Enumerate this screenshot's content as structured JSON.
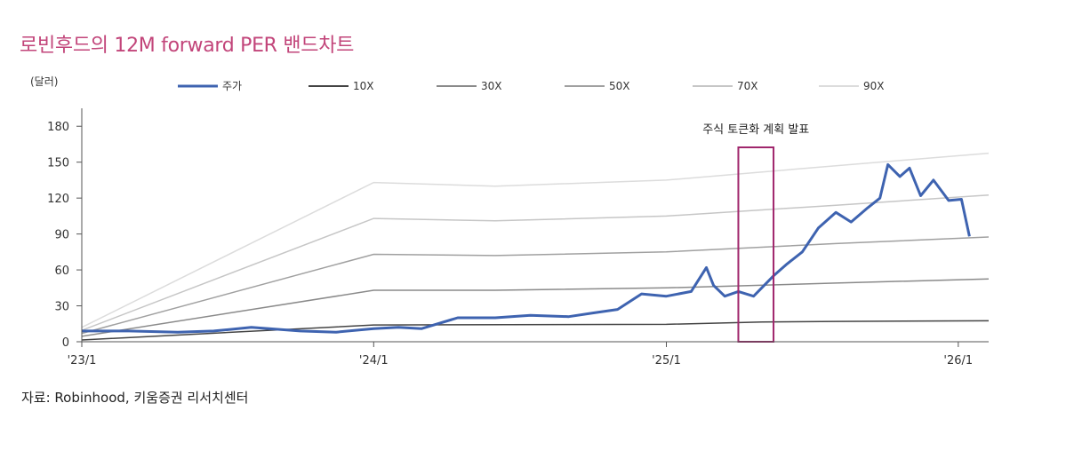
{
  "chart_data": {
    "type": "line",
    "title": "로빈후드의 12M forward PER 밴드차트",
    "unit_label": "(달러)",
    "source": "자료: Robinhood, 키움증권 리서치센터",
    "annotation": "주식 토큰화 계획 발표",
    "annotation_range": [
      "2025-04-01",
      "2025-05-15"
    ],
    "ylim": [
      0,
      195
    ],
    "yticks": [
      "0",
      "30",
      "60",
      "90",
      "120",
      "150",
      "180"
    ],
    "xticks": [
      "'23/1",
      "'24/1",
      "'25/1",
      "'26/1"
    ],
    "xlim": [
      "2023-01-01",
      "2026-02-08"
    ],
    "grid": false,
    "legend_position": "top",
    "series": [
      {
        "name": "주가",
        "color": "#3e63b0",
        "width": 3,
        "x": [
          "2023-01-01",
          "2023-03-01",
          "2023-05-01",
          "2023-06-15",
          "2023-08-01",
          "2023-10-01",
          "2023-11-15",
          "2024-01-01",
          "2024-02-01",
          "2024-03-01",
          "2024-04-15",
          "2024-06-01",
          "2024-07-15",
          "2024-09-01",
          "2024-10-01",
          "2024-11-01",
          "2024-12-01",
          "2025-01-01",
          "2025-02-01",
          "2025-02-20",
          "2025-03-01",
          "2025-03-15",
          "2025-04-01",
          "2025-04-20",
          "2025-05-15",
          "2025-06-01",
          "2025-06-20",
          "2025-07-10",
          "2025-08-01",
          "2025-08-20",
          "2025-09-10",
          "2025-09-25",
          "2025-10-05",
          "2025-10-20",
          "2025-11-01",
          "2025-11-15",
          "2025-12-01",
          "2025-12-20",
          "2026-01-05",
          "2026-01-15"
        ],
        "values": [
          9,
          9,
          8,
          9,
          12,
          9,
          8,
          11,
          12,
          11,
          20,
          20,
          22,
          21,
          24,
          27,
          40,
          38,
          42,
          62,
          47,
          38,
          42,
          38,
          55,
          65,
          75,
          95,
          108,
          100,
          112,
          120,
          148,
          138,
          145,
          122,
          135,
          118,
          119,
          88
        ]
      },
      {
        "name": "10X",
        "color": "#444444",
        "width": 1.5,
        "x": [
          "2023-01-01",
          "2024-01-01",
          "2025-01-01",
          "2025-05-01",
          "2025-08-01",
          "2026-02-08"
        ],
        "values": [
          1.5,
          14,
          14.5,
          16.5,
          17,
          17.5
        ]
      },
      {
        "name": "30X",
        "color": "#8a8a8a",
        "width": 1.5,
        "x": [
          "2023-01-01",
          "2024-01-01",
          "2024-06-01",
          "2025-01-01",
          "2025-08-01",
          "2026-02-08"
        ],
        "values": [
          4.5,
          43,
          43,
          45,
          49,
          52.5
        ]
      },
      {
        "name": "50X",
        "color": "#a0a0a0",
        "width": 1.5,
        "x": [
          "2023-01-01",
          "2024-01-01",
          "2024-06-01",
          "2025-01-01",
          "2025-08-01",
          "2026-02-08"
        ],
        "values": [
          7,
          73,
          72,
          75,
          82,
          87.5
        ]
      },
      {
        "name": "70X",
        "color": "#c6c6c6",
        "width": 1.5,
        "x": [
          "2023-01-01",
          "2024-01-01",
          "2024-06-01",
          "2025-01-01",
          "2025-08-01",
          "2026-02-08"
        ],
        "values": [
          9.5,
          103,
          101,
          105,
          114,
          122.5
        ]
      },
      {
        "name": "90X",
        "color": "#dcdcdc",
        "width": 1.5,
        "x": [
          "2023-01-01",
          "2024-01-01",
          "2024-06-01",
          "2025-01-01",
          "2025-08-01",
          "2026-02-08"
        ],
        "values": [
          12,
          133,
          130,
          135,
          147,
          157.5
        ]
      }
    ]
  }
}
